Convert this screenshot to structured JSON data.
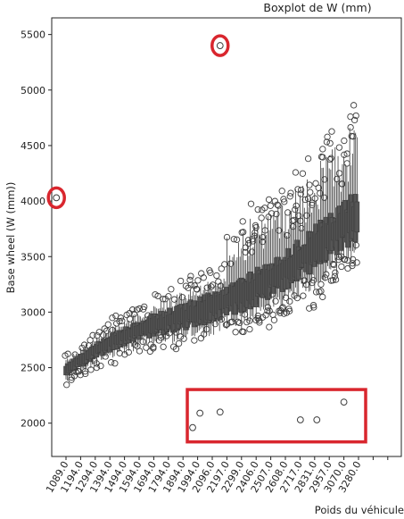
{
  "chart_data": {
    "type": "boxplot",
    "title": "Boxplot de W (mm)",
    "xlabel": "Poids du véhicule",
    "ylabel": "Base wheel (W (mm))",
    "ylim": [
      1700,
      5650
    ],
    "y_ticks": [
      2000,
      2500,
      3000,
      3500,
      4000,
      4500,
      5000,
      5500
    ],
    "x_tick_labels": [
      "1089.0",
      "1194.0",
      "1294.0",
      "1394.0",
      "1494.0",
      "1594.0",
      "1694.0",
      "1794.0",
      "1894.0",
      "1994.0",
      "2096.0",
      "2197.0",
      "2299.0",
      "2406.0",
      "2507.0",
      "2608.0",
      "2717.0",
      "2831.0",
      "2957.0",
      "3070.0",
      "3280.0"
    ],
    "grid": false,
    "trend_points": [
      {
        "x": 1089.0,
        "y": 2480
      },
      {
        "x": 1194.0,
        "y": 2560
      },
      {
        "x": 1294.0,
        "y": 2650
      },
      {
        "x": 1394.0,
        "y": 2720
      },
      {
        "x": 1494.0,
        "y": 2780
      },
      {
        "x": 1594.0,
        "y": 2840
      },
      {
        "x": 1694.0,
        "y": 2880
      },
      {
        "x": 1794.0,
        "y": 2920
      },
      {
        "x": 1894.0,
        "y": 2960
      },
      {
        "x": 1994.0,
        "y": 3000
      },
      {
        "x": 2096.0,
        "y": 3050
      },
      {
        "x": 2197.0,
        "y": 3100
      },
      {
        "x": 2299.0,
        "y": 3160
      },
      {
        "x": 2406.0,
        "y": 3220
      },
      {
        "x": 2507.0,
        "y": 3300
      },
      {
        "x": 2608.0,
        "y": 3380
      },
      {
        "x": 2717.0,
        "y": 3480
      },
      {
        "x": 2831.0,
        "y": 3580
      },
      {
        "x": 2957.0,
        "y": 3700
      },
      {
        "x": 3070.0,
        "y": 3780
      },
      {
        "x": 3280.0,
        "y": 3880
      }
    ],
    "highlighted_outliers": [
      {
        "x": 2150.0,
        "y": 5400
      },
      {
        "x": 1020.0,
        "y": 4030
      }
    ],
    "highlighted_low_outliers": [
      {
        "x": 1960.0,
        "y": 1960
      },
      {
        "x": 2010.0,
        "y": 2090
      },
      {
        "x": 2150.0,
        "y": 2100
      },
      {
        "x": 2720.0,
        "y": 2030
      },
      {
        "x": 2850.0,
        "y": 2030
      },
      {
        "x": 3070.0,
        "y": 2190
      }
    ],
    "annotation_color": "#d9262e"
  }
}
